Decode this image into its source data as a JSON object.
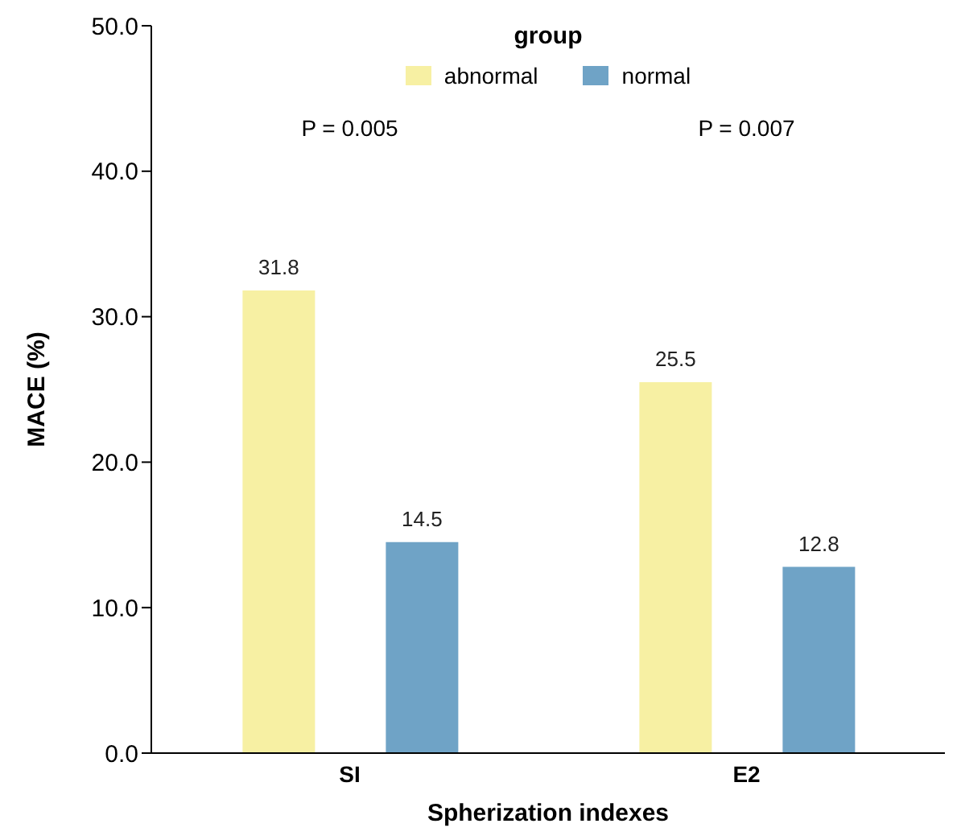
{
  "chart_data": {
    "type": "bar",
    "xlabel": "Spherization indexes",
    "ylabel": "MACE (%)",
    "legend_title": "group",
    "categories": [
      "SI",
      "E2"
    ],
    "series": [
      {
        "name": "abnormal",
        "color": "#f7f0a3",
        "values": [
          31.8,
          25.5
        ]
      },
      {
        "name": "normal",
        "color": "#6fa3c6",
        "values": [
          14.5,
          12.8
        ]
      }
    ],
    "ylim": [
      0,
      50
    ],
    "yticks": [
      {
        "value": 0,
        "label": "0.0"
      },
      {
        "value": 10,
        "label": "10.0"
      },
      {
        "value": 20,
        "label": "20.0"
      },
      {
        "value": 30,
        "label": "30.0"
      },
      {
        "value": 40,
        "label": "40.0"
      },
      {
        "value": 50,
        "label": "50.0"
      }
    ],
    "annotations": [
      "P = 0.005",
      "P = 0.007"
    ],
    "data_labels": true,
    "grid": false,
    "legend": "top"
  }
}
